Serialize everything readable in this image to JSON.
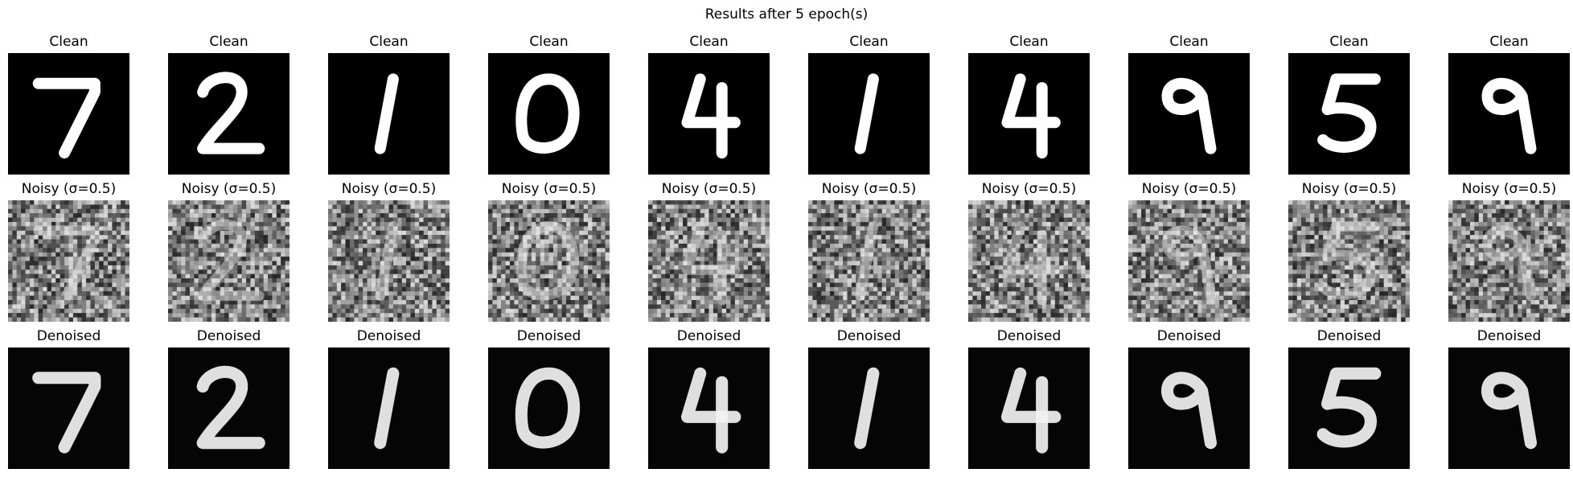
{
  "figure": {
    "title": "Results after 5 epoch(s)"
  },
  "rows": [
    {
      "kind": "clean",
      "title": "Clean"
    },
    {
      "kind": "noisy",
      "title": "Noisy (σ=0.5)"
    },
    {
      "kind": "denoised",
      "title": "Denoised"
    }
  ],
  "digits": [
    "7",
    "2",
    "1",
    "0",
    "4",
    "1",
    "4",
    "9",
    "5",
    "9"
  ],
  "colors": {
    "background": "#ffffff",
    "image_background": "#000000",
    "stroke": "#ffffff"
  }
}
